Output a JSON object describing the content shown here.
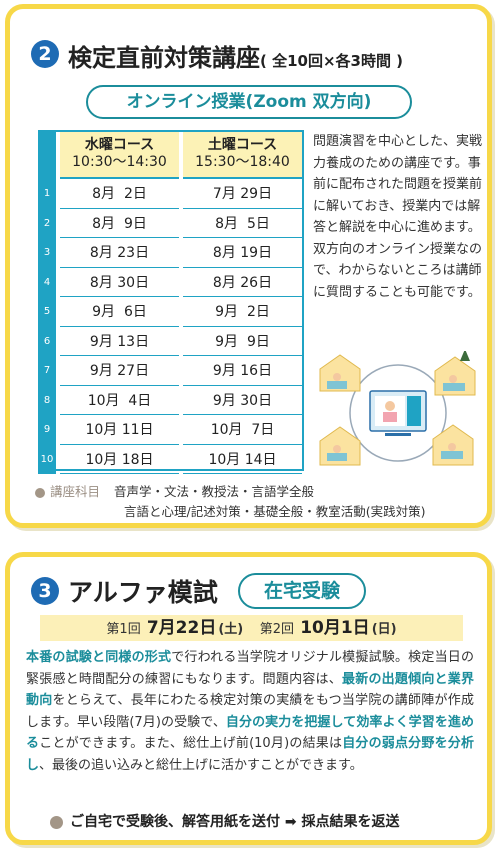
{
  "section2": {
    "number": "2",
    "title": "検定直前対策講座",
    "title_sub": "( 全10回×各3時間 )",
    "pill": "オンライン授業(Zoom 双方向)",
    "table": {
      "col1_name": "水曜コース",
      "col1_time": "10:30〜14:30",
      "col2_name": "土曜コース",
      "col2_time": "15:30〜18:40",
      "rows": [
        {
          "n": "1",
          "a": "8月  2日",
          "b": "7月 29日"
        },
        {
          "n": "2",
          "a": "8月  9日",
          "b": "8月  5日"
        },
        {
          "n": "3",
          "a": "8月 23日",
          "b": "8月 19日"
        },
        {
          "n": "4",
          "a": "8月 30日",
          "b": "8月 26日"
        },
        {
          "n": "5",
          "a": "9月  6日",
          "b": "9月  2日"
        },
        {
          "n": "6",
          "a": "9月 13日",
          "b": "9月  9日"
        },
        {
          "n": "7",
          "a": "9月 27日",
          "b": "9月 16日"
        },
        {
          "n": "8",
          "a": "10月  4日",
          "b": "9月 30日"
        },
        {
          "n": "9",
          "a": "10月 11日",
          "b": "10月  7日"
        },
        {
          "n": "10",
          "a": "10月 18日",
          "b": "10月 14日"
        }
      ]
    },
    "description": "問題演習を中心とした、実戦力養成のための講座です。事前に配布された問題を授業前に解いておき、授業内では解答と解説を中心に進めます。双方向のオンライン授業なので、わからないところは講師に質問することも可能です。",
    "subjects_label": "講座科目",
    "subjects_line1": "音声学・文法・教授法・言語学全般",
    "subjects_line2": "言語と心理/記述対策・基礎全般・教室活動(実践対策)"
  },
  "section3": {
    "number": "3",
    "title": "アルファ模試",
    "pill": "在宅受験",
    "round1_label": "第1回",
    "round1_date": "7月22日",
    "round1_day": "(土)",
    "round2_label": "第2回",
    "round2_date": "10月1日",
    "round2_day": "(日)",
    "body": {
      "p1": "本番の試験と同様の形式",
      "p2": "で行われる当学院オリジナル模擬試験。検定当日の緊張感と時間配分の練習にもなります。問題内容は、",
      "p3": "最新の出題傾向と業界動向",
      "p4": "をとらえて、長年にわたる検定対策の実績をもつ当学院の講師陣が作成します。早い段階(7月)の受験で、",
      "p5": "自分の実力を把握して効率よく学習を進める",
      "p6": "ことができます。また、総仕上げ前(10月)の結果は",
      "p7": "自分の弱点分野を分析し",
      "p8": "、最後の追い込みと総仕上げに活かすことができます。"
    },
    "bottom": "ご自宅で受験後、解答用紙を送付 ➡ 採点結果を返送"
  },
  "colors": {
    "frame": "#f7d848",
    "accent_blue": "#1e6bb4",
    "teal": "#1b8d9b",
    "table_blue": "#1fa3c4",
    "header_yellow": "#fcf2b6"
  }
}
